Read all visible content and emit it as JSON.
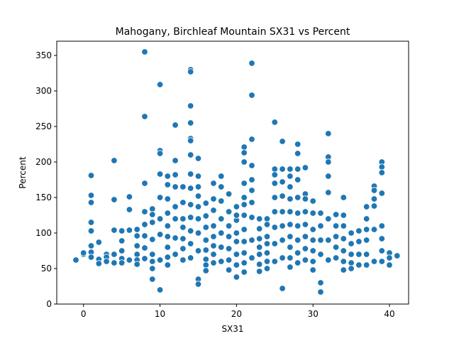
{
  "chart_data": {
    "type": "scatter",
    "title": "Mahogany, Birchleaf Mountain SX31 vs Percent",
    "xlabel": "SX31",
    "ylabel": "Percent",
    "xlim": [
      -3.5,
      42.5
    ],
    "ylim": [
      0,
      370
    ],
    "xticks": [
      0,
      10,
      20,
      30,
      40
    ],
    "yticks": [
      0,
      50,
      100,
      150,
      200,
      250,
      300,
      350
    ],
    "grid": false,
    "legend": "none",
    "marker_color": "#1f77b4",
    "marker_edge": "#ffffff",
    "x": [
      -1,
      0,
      0,
      1,
      1,
      1,
      1,
      1,
      1,
      1,
      1,
      2,
      2,
      2,
      3,
      3,
      3,
      4,
      4,
      4,
      4,
      4,
      5,
      5,
      5,
      5,
      5,
      6,
      6,
      6,
      6,
      7,
      7,
      7,
      7,
      7,
      7,
      8,
      8,
      8,
      8,
      8,
      8,
      8,
      8,
      9,
      9,
      9,
      9,
      9,
      9,
      9,
      9,
      10,
      10,
      10,
      10,
      10,
      10,
      10,
      10,
      10,
      11,
      11,
      11,
      11,
      11,
      11,
      11,
      11,
      11,
      12,
      12,
      12,
      12,
      12,
      12,
      12,
      12,
      13,
      13,
      13,
      13,
      13,
      13,
      13,
      14,
      14,
      14,
      14,
      14,
      14,
      14,
      14,
      14,
      14,
      14,
      14,
      14,
      14,
      15,
      15,
      15,
      15,
      15,
      15,
      15,
      15,
      15,
      15,
      16,
      16,
      16,
      16,
      16,
      16,
      16,
      16,
      17,
      17,
      17,
      17,
      17,
      17,
      17,
      17,
      18,
      18,
      18,
      18,
      18,
      18,
      18,
      19,
      19,
      19,
      19,
      19,
      19,
      19,
      20,
      20,
      20,
      20,
      20,
      20,
      20,
      20,
      21,
      21,
      21,
      21,
      21,
      21,
      21,
      21,
      21,
      21,
      21,
      21,
      22,
      22,
      22,
      22,
      22,
      22,
      22,
      22,
      22,
      22,
      23,
      23,
      23,
      23,
      23,
      23,
      23,
      24,
      24,
      24,
      24,
      24,
      24,
      24,
      25,
      25,
      25,
      25,
      25,
      25,
      25,
      25,
      25,
      26,
      26,
      26,
      26,
      26,
      26,
      26,
      26,
      26,
      27,
      27,
      27,
      27,
      27,
      27,
      27,
      27,
      27,
      27,
      28,
      28,
      28,
      28,
      28,
      28,
      28,
      28,
      28,
      28,
      29,
      29,
      29,
      29,
      29,
      29,
      29,
      29,
      30,
      30,
      30,
      30,
      30,
      30,
      30,
      31,
      31,
      31,
      31,
      31,
      31,
      32,
      32,
      32,
      32,
      32,
      32,
      32,
      32,
      33,
      33,
      33,
      33,
      33,
      34,
      34,
      34,
      34,
      34,
      34,
      34,
      35,
      35,
      35,
      35,
      35,
      36,
      36,
      36,
      36,
      37,
      37,
      37,
      37,
      37,
      37,
      38,
      38,
      38,
      38,
      38,
      38,
      39,
      39,
      39,
      39,
      39,
      39,
      39,
      39,
      40,
      40,
      40,
      41
    ],
    "y": [
      62,
      70,
      72,
      181,
      153,
      143,
      115,
      103,
      82,
      73,
      66,
      87,
      63,
      57,
      70,
      66,
      60,
      202,
      147,
      104,
      70,
      58,
      103,
      89,
      75,
      64,
      58,
      151,
      133,
      104,
      62,
      105,
      96,
      82,
      70,
      62,
      56,
      355,
      264,
      170,
      130,
      112,
      96,
      79,
      64,
      134,
      115,
      91,
      70,
      60,
      50,
      35,
      126,
      309,
      216,
      212,
      183,
      150,
      120,
      98,
      20,
      62,
      180,
      168,
      148,
      128,
      110,
      95,
      80,
      66,
      55,
      252,
      202,
      182,
      165,
      137,
      120,
      93,
      70,
      165,
      143,
      120,
      108,
      92,
      78,
      62,
      330,
      327,
      279,
      255,
      233,
      230,
      210,
      183,
      163,
      140,
      122,
      103,
      85,
      65,
      205,
      180,
      165,
      152,
      137,
      120,
      100,
      75,
      35,
      28,
      142,
      124,
      108,
      90,
      76,
      63,
      55,
      47,
      170,
      148,
      132,
      110,
      95,
      82,
      70,
      58,
      180,
      165,
      145,
      120,
      100,
      80,
      60,
      155,
      130,
      110,
      95,
      78,
      62,
      48,
      137,
      118,
      100,
      88,
      70,
      55,
      38,
      125,
      221,
      213,
      200,
      170,
      150,
      140,
      125,
      105,
      88,
      72,
      58,
      45,
      339,
      294,
      232,
      195,
      175,
      160,
      143,
      122,
      90,
      65,
      120,
      106,
      92,
      80,
      70,
      56,
      46,
      120,
      112,
      95,
      85,
      72,
      60,
      50,
      256,
      190,
      182,
      170,
      150,
      130,
      108,
      85,
      60,
      229,
      190,
      172,
      152,
      130,
      110,
      90,
      65,
      22,
      190,
      180,
      165,
      148,
      130,
      112,
      95,
      80,
      65,
      52,
      225,
      212,
      190,
      175,
      150,
      128,
      110,
      90,
      72,
      58,
      192,
      155,
      148,
      130,
      112,
      95,
      78,
      62,
      145,
      128,
      105,
      90,
      75,
      60,
      48,
      30,
      17,
      128,
      110,
      90,
      70,
      240,
      207,
      200,
      180,
      157,
      120,
      90,
      62,
      126,
      110,
      95,
      80,
      65,
      150,
      125,
      110,
      92,
      75,
      60,
      48,
      100,
      85,
      70,
      58,
      50,
      103,
      88,
      70,
      55,
      137,
      120,
      105,
      90,
      70,
      55,
      166,
      160,
      148,
      138,
      105,
      60,
      200,
      193,
      185,
      156,
      110,
      92,
      75,
      60,
      72,
      65,
      55,
      68
    ]
  }
}
